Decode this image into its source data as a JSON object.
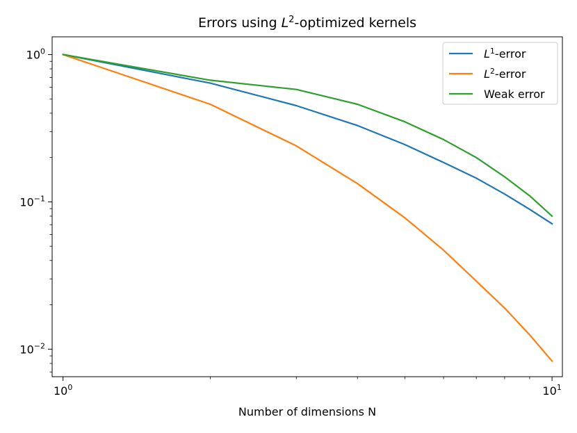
{
  "chart_data": {
    "type": "line",
    "title": "Errors using L²-optimized kernels",
    "title_parts": {
      "pre": "Errors using ",
      "var": "L",
      "sup": "2",
      "post": "-optimized kernels"
    },
    "xlabel": "Number of dimensions N",
    "ylabel": "",
    "xscale": "log",
    "yscale": "log",
    "xlim": [
      0.95,
      10.5
    ],
    "ylim": [
      0.0065,
      1.32
    ],
    "grid": false,
    "legend_position": "top-right",
    "x": [
      1,
      2,
      3,
      4,
      5,
      6,
      7,
      8,
      9,
      10
    ],
    "x_ticks": [
      {
        "value": 1,
        "base": "10",
        "exp": "0"
      },
      {
        "value": 10,
        "base": "10",
        "exp": "1"
      }
    ],
    "y_ticks": [
      {
        "value": 1,
        "base": "10",
        "exp": "0"
      },
      {
        "value": 0.1,
        "base": "10",
        "exp": "−1"
      },
      {
        "value": 0.01,
        "base": "10",
        "exp": "−2"
      }
    ],
    "series": [
      {
        "name": "L¹-error",
        "label_var": "L",
        "label_sup": "1",
        "label_post": "-error",
        "color": "#1f77b4",
        "values": [
          1.0,
          0.64,
          0.45,
          0.33,
          0.245,
          0.185,
          0.145,
          0.113,
          0.089,
          0.071
        ]
      },
      {
        "name": "L²-error",
        "label_var": "L",
        "label_sup": "2",
        "label_post": "-error",
        "color": "#ff7f0e",
        "values": [
          1.0,
          0.46,
          0.24,
          0.133,
          0.078,
          0.047,
          0.029,
          0.019,
          0.0125,
          0.0083
        ]
      },
      {
        "name": "Weak error",
        "label_var": "",
        "label_sup": "",
        "label_post": "Weak error",
        "color": "#2ca02c",
        "values": [
          1.0,
          0.67,
          0.58,
          0.46,
          0.35,
          0.265,
          0.2,
          0.148,
          0.11,
          0.08
        ]
      }
    ]
  }
}
